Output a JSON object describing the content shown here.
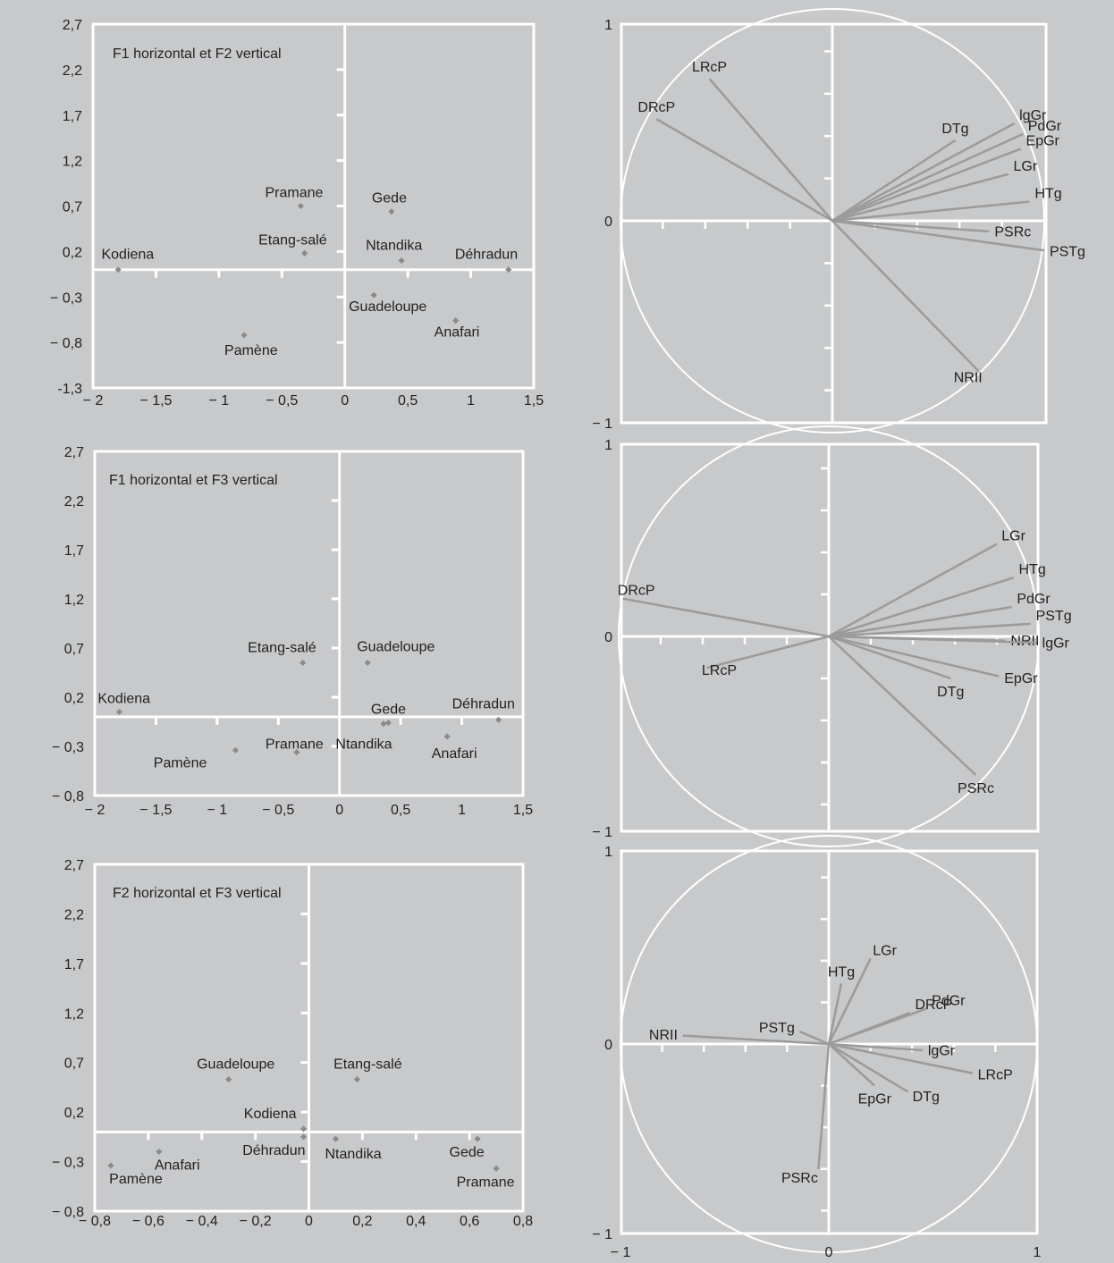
{
  "colors": {
    "background": "#c8c9cb",
    "frame": "#ffffff",
    "axis": "#ffffff",
    "marker": "#8a8a8a",
    "vector": "#9b9b9b",
    "text": "#222222"
  },
  "chart_data": [
    {
      "type": "scatter",
      "title": "F1 horizontal et F2 vertical",
      "xlim": [
        -2,
        1.5
      ],
      "ylim": [
        -1.3,
        2.7
      ],
      "xticks": [
        "− 2",
        "− 1,5",
        "− 1",
        "− 0,5",
        "0",
        "0,5",
        "1",
        "1,5"
      ],
      "yticks": [
        "2,7",
        "2,2",
        "1,7",
        "1,2",
        "0,7",
        "0,2",
        "− 0,3",
        "− 0,8",
        "-1,3"
      ],
      "points": [
        {
          "label": "Kodiena",
          "x": -1.8,
          "y": 0.0
        },
        {
          "label": "Pramane",
          "x": -0.35,
          "y": 0.7
        },
        {
          "label": "Gede",
          "x": 0.37,
          "y": 0.64
        },
        {
          "label": "Etang-salé",
          "x": -0.32,
          "y": 0.18
        },
        {
          "label": "Ntandika",
          "x": 0.45,
          "y": 0.1
        },
        {
          "label": "Déhradun",
          "x": 1.3,
          "y": 0.0
        },
        {
          "label": "Guadeloupe",
          "x": 0.23,
          "y": -0.28
        },
        {
          "label": "Anafari",
          "x": 0.88,
          "y": -0.56
        },
        {
          "label": "Pamène",
          "x": -0.8,
          "y": -0.72
        }
      ]
    },
    {
      "type": "line",
      "title": "",
      "xlim": [
        -1,
        1
      ],
      "ylim": [
        -1,
        1
      ],
      "yticks": [
        "1",
        "0",
        "− 1"
      ],
      "vectors": [
        {
          "label": "LRcP",
          "x": -0.58,
          "y": 0.67
        },
        {
          "label": "DRcP",
          "x": -0.83,
          "y": 0.48
        },
        {
          "label": "DTg",
          "x": 0.58,
          "y": 0.38
        },
        {
          "label": "lgGr",
          "x": 0.86,
          "y": 0.46
        },
        {
          "label": "PdGr",
          "x": 0.9,
          "y": 0.41
        },
        {
          "label": "EpGr",
          "x": 0.89,
          "y": 0.34
        },
        {
          "label": "LGr",
          "x": 0.83,
          "y": 0.22
        },
        {
          "label": "HTg",
          "x": 0.93,
          "y": 0.09
        },
        {
          "label": "PSRc",
          "x": 0.74,
          "y": -0.05
        },
        {
          "label": "PSTg",
          "x": 1.0,
          "y": -0.14
        },
        {
          "label": "NRII",
          "x": 0.69,
          "y": -0.71
        }
      ]
    },
    {
      "type": "scatter",
      "title": "F1 horizontal et F3 vertical",
      "xlim": [
        -2,
        1.5
      ],
      "ylim": [
        -0.8,
        2.7
      ],
      "xticks": [
        "− 2",
        "− 1,5",
        "− 1",
        "− 0,5",
        "0",
        "0,5",
        "1",
        "1,5"
      ],
      "yticks": [
        "2,7",
        "2,2",
        "1,7",
        "1,2",
        "0,7",
        "0,2",
        "− 0,3",
        "− 0,8"
      ],
      "points": [
        {
          "label": "Kodiena",
          "x": -1.8,
          "y": 0.05
        },
        {
          "label": "Etang-salé",
          "x": -0.3,
          "y": 0.55
        },
        {
          "label": "Guadeloupe",
          "x": 0.23,
          "y": 0.55
        },
        {
          "label": "Gede",
          "x": 0.4,
          "y": -0.06
        },
        {
          "label": "Déhradun",
          "x": 1.3,
          "y": -0.03
        },
        {
          "label": "Ntandika",
          "x": 0.36,
          "y": -0.07
        },
        {
          "label": "Anafari",
          "x": 0.88,
          "y": -0.2
        },
        {
          "label": "Pramane",
          "x": -0.35,
          "y": -0.36
        },
        {
          "label": "Pamène",
          "x": -0.85,
          "y": -0.34
        }
      ]
    },
    {
      "type": "line",
      "title": "",
      "xlim": [
        -1,
        1
      ],
      "ylim": [
        -1,
        1
      ],
      "yticks": [
        "1",
        "0",
        "− 1"
      ],
      "vectors": [
        {
          "label": "DRcP",
          "x": -0.98,
          "y": 0.18
        },
        {
          "label": "LRcP",
          "x": -0.58,
          "y": -0.15
        },
        {
          "label": "LGr",
          "x": 0.8,
          "y": 0.44
        },
        {
          "label": "HTg",
          "x": 0.88,
          "y": 0.28
        },
        {
          "label": "PdGr",
          "x": 0.87,
          "y": 0.14
        },
        {
          "label": "PSTg",
          "x": 0.96,
          "y": 0.06
        },
        {
          "label": "NRII",
          "x": 0.84,
          "y": -0.02
        },
        {
          "label": "lgGr",
          "x": 0.99,
          "y": -0.03
        },
        {
          "label": "EpGr",
          "x": 0.81,
          "y": -0.19
        },
        {
          "label": "DTg",
          "x": 0.58,
          "y": -0.2
        },
        {
          "label": "PSRc",
          "x": 0.7,
          "y": -0.66
        }
      ]
    },
    {
      "type": "scatter",
      "title": "F2 horizontal et F3 vertical",
      "xlim": [
        -0.8,
        0.8
      ],
      "ylim": [
        -0.8,
        2.7
      ],
      "xticks": [
        "− 0,8",
        "− 0,6",
        "− 0,4",
        "− 0,2",
        "0",
        "0,2",
        "0,4",
        "0,6",
        "0,8"
      ],
      "yticks": [
        "2,7",
        "2,2",
        "1,7",
        "1,2",
        "0,7",
        "0,2",
        "− 0,3",
        "− 0,8"
      ],
      "points": [
        {
          "label": "Guadeloupe",
          "x": -0.3,
          "y": 0.53
        },
        {
          "label": "Etang-salé",
          "x": 0.18,
          "y": 0.53
        },
        {
          "label": "Kodiena",
          "x": -0.02,
          "y": 0.03
        },
        {
          "label": "Déhradun",
          "x": -0.02,
          "y": -0.05
        },
        {
          "label": "Ntandika",
          "x": 0.1,
          "y": -0.07
        },
        {
          "label": "Gede",
          "x": 0.63,
          "y": -0.07
        },
        {
          "label": "Anafari",
          "x": -0.56,
          "y": -0.2
        },
        {
          "label": "Pamène",
          "x": -0.74,
          "y": -0.34
        },
        {
          "label": "Pramane",
          "x": 0.7,
          "y": -0.37
        }
      ]
    },
    {
      "type": "line",
      "title": "",
      "xlim": [
        -1,
        1
      ],
      "ylim": [
        -1,
        1
      ],
      "xticks": [
        "− 1",
        "0",
        "1"
      ],
      "yticks": [
        "1",
        "0",
        "− 1"
      ],
      "vectors": [
        {
          "label": "LGr",
          "x": 0.2,
          "y": 0.41
        },
        {
          "label": "HTg",
          "x": 0.06,
          "y": 0.29
        },
        {
          "label": "DRcP",
          "x": 0.39,
          "y": 0.15
        },
        {
          "label": "PdGr",
          "x": 0.47,
          "y": 0.17
        },
        {
          "label": "NRII",
          "x": -0.7,
          "y": 0.04
        },
        {
          "label": "PSTg",
          "x": -0.14,
          "y": 0.06
        },
        {
          "label": "lgGr",
          "x": 0.45,
          "y": -0.03
        },
        {
          "label": "LRcP",
          "x": 0.69,
          "y": -0.14
        },
        {
          "label": "DTg",
          "x": 0.38,
          "y": -0.23
        },
        {
          "label": "EpGr",
          "x": 0.22,
          "y": -0.2
        },
        {
          "label": "PSRc",
          "x": -0.05,
          "y": -0.6
        }
      ]
    }
  ]
}
